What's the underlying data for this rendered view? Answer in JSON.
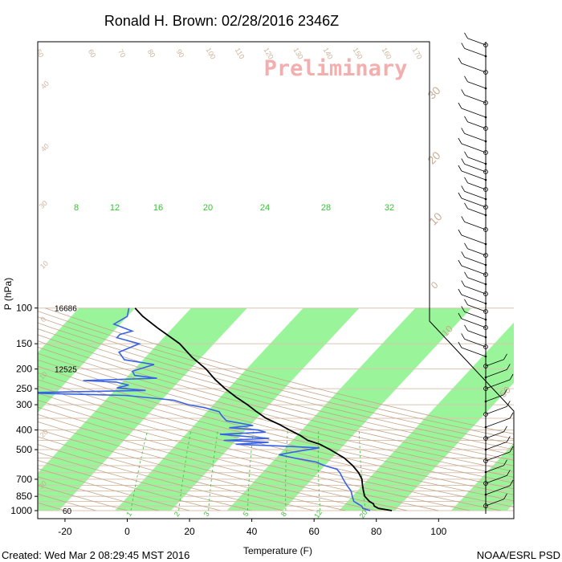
{
  "header": {
    "title": "Ronald H. Brown: 02/28/2016 2346Z"
  },
  "footer": {
    "created": "Created: Wed Mar  2 08:29:45 MST 2016",
    "credit": "NOAA/ESRL PSD"
  },
  "watermark": "Preliminary",
  "colors": {
    "temperature": "#000000",
    "dewpoint": "#3a62e6",
    "band": "#9af59a",
    "isobar": "#dcc4b0",
    "dry_adiabat": "#c4a488",
    "mixing_ratio": "#36c236",
    "watermark": "#f2a0a0"
  },
  "chart_data": {
    "type": "skew-t",
    "title": "Ronald H. Brown: 02/28/2016 2346Z",
    "xlabel": "Temperature (F)",
    "ylabel": "P (hPa)",
    "xlim": [
      -30,
      115
    ],
    "ylim": [
      1000,
      100
    ],
    "x_ticks": [
      "-20",
      "0",
      "20",
      "40",
      "60",
      "80",
      "100"
    ],
    "y_ticks": [
      "100",
      "150",
      "200",
      "250",
      "300",
      "400",
      "500",
      "700",
      "850",
      "1000"
    ],
    "heights": [
      {
        "p": 100,
        "label": "16686"
      },
      {
        "p": 200,
        "label": "12525"
      },
      {
        "p": 1000,
        "label": "60"
      }
    ],
    "temperature": [
      [
        1000,
        85
      ],
      [
        975,
        80
      ],
      [
        950,
        78
      ],
      [
        925,
        77
      ],
      [
        900,
        75
      ],
      [
        850,
        72
      ],
      [
        800,
        70
      ],
      [
        750,
        68
      ],
      [
        700,
        66
      ],
      [
        650,
        63
      ],
      [
        600,
        59
      ],
      [
        550,
        54
      ],
      [
        500,
        47
      ],
      [
        470,
        42
      ],
      [
        450,
        37
      ],
      [
        425,
        33
      ],
      [
        400,
        28
      ],
      [
        375,
        23
      ],
      [
        350,
        17
      ],
      [
        325,
        12
      ],
      [
        300,
        7
      ],
      [
        275,
        1
      ],
      [
        250,
        -5
      ],
      [
        225,
        -11
      ],
      [
        200,
        -17
      ],
      [
        175,
        -25
      ],
      [
        150,
        -33
      ],
      [
        125,
        -45
      ],
      [
        110,
        -53
      ],
      [
        100,
        -58
      ]
    ],
    "dewpoint": [
      [
        1000,
        78
      ],
      [
        975,
        75
      ],
      [
        950,
        74
      ],
      [
        925,
        72
      ],
      [
        900,
        70
      ],
      [
        875,
        69
      ],
      [
        850,
        68
      ],
      [
        800,
        66
      ],
      [
        750,
        63
      ],
      [
        700,
        60
      ],
      [
        650,
        57
      ],
      [
        625,
        55
      ],
      [
        600,
        50
      ],
      [
        575,
        46
      ],
      [
        550,
        38
      ],
      [
        530,
        32
      ],
      [
        510,
        37
      ],
      [
        490,
        43
      ],
      [
        480,
        30
      ],
      [
        470,
        15
      ],
      [
        460,
        25
      ],
      [
        450,
        10
      ],
      [
        440,
        24
      ],
      [
        420,
        7
      ],
      [
        410,
        21
      ],
      [
        400,
        18
      ],
      [
        390,
        8
      ],
      [
        380,
        15
      ],
      [
        360,
        5
      ],
      [
        340,
        2
      ],
      [
        325,
        0
      ],
      [
        310,
        -6
      ],
      [
        300,
        -12
      ],
      [
        285,
        -18
      ],
      [
        270,
        -35
      ],
      [
        262,
        -70
      ],
      [
        255,
        -30
      ],
      [
        248,
        -40
      ],
      [
        240,
        -37
      ],
      [
        232,
        -42
      ],
      [
        228,
        -53
      ],
      [
        222,
        -30
      ],
      [
        215,
        -38
      ],
      [
        205,
        -40
      ],
      [
        190,
        -35
      ],
      [
        180,
        -46
      ],
      [
        165,
        -50
      ],
      [
        150,
        -46
      ],
      [
        140,
        -55
      ],
      [
        135,
        -55
      ],
      [
        130,
        -52
      ],
      [
        120,
        -60
      ],
      [
        110,
        -58
      ],
      [
        100,
        -60
      ]
    ],
    "mixing_ratio_lines": [
      {
        "w": 1,
        "label": "1"
      },
      {
        "w": 2,
        "label": "2"
      },
      {
        "w": 3,
        "label": "3"
      },
      {
        "w": 5,
        "label": "5"
      },
      {
        "w": 8,
        "label": "8"
      },
      {
        "w": 12,
        "label": "12"
      },
      {
        "w": 20,
        "label": "20"
      }
    ],
    "isotherm_band_labels": [
      "8",
      "12",
      "16",
      "20",
      "24",
      "28",
      "32"
    ],
    "dry_adiabat_labels": [
      "50",
      "60",
      "70",
      "80",
      "90",
      "100",
      "110",
      "120",
      "130",
      "140",
      "150",
      "160",
      "170"
    ],
    "right_edge_labels": [
      "30",
      "20",
      "10",
      "0",
      "10",
      "50"
    ],
    "left_edge_labels": [
      "40",
      "40",
      "30",
      "10",
      "0",
      "10",
      "20",
      "30"
    ],
    "grid": true,
    "wind_barbs": true
  }
}
